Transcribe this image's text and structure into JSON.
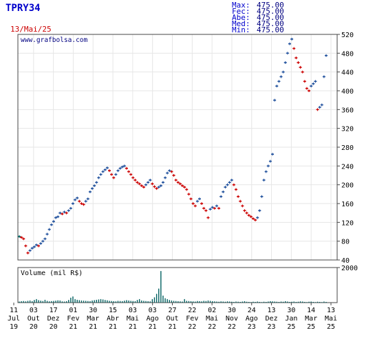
{
  "header": {
    "ticker": "TPRY34",
    "date": "13/Mai/25",
    "stats": [
      {
        "label": "Max:",
        "value": "475.00"
      },
      {
        "label": "Fec:",
        "value": "475.00"
      },
      {
        "label": "Abe:",
        "value": "475.00"
      },
      {
        "label": "Med:",
        "value": "475.00"
      },
      {
        "label": "Min:",
        "value": "475.00"
      }
    ]
  },
  "colors": {
    "ticker": "#0000cc",
    "date": "#cc0000",
    "stat_label": "#0000cc",
    "stat_value": "#000080",
    "watermark": "#000080",
    "up": "#1e4f9c",
    "down": "#cc0000",
    "neutral": "#006060",
    "volume": "#006060",
    "grid": "#e6e6e6",
    "frame": "#444444"
  },
  "chart_data": [
    {
      "type": "line",
      "watermark": "www.grafbolsa.com",
      "ylim": [
        40,
        520
      ],
      "ytick_labels": [
        "40",
        "80",
        "120",
        "160",
        "200",
        "240",
        "280",
        "320",
        "360",
        "400",
        "440",
        "480",
        "520"
      ],
      "xtick_labels": [
        {
          "day": "11",
          "month": "Jul",
          "year": "19"
        },
        {
          "day": "03",
          "month": "Out",
          "year": "20"
        },
        {
          "day": "17",
          "month": "Dez",
          "year": "20"
        },
        {
          "day": "01",
          "month": "Fev",
          "year": "21"
        },
        {
          "day": "30",
          "month": "Mar",
          "year": "21"
        },
        {
          "day": "15",
          "month": "Abr",
          "year": "21"
        },
        {
          "day": "03",
          "month": "Mai",
          "year": "21"
        },
        {
          "day": "03",
          "month": "Ago",
          "year": "21"
        },
        {
          "day": "27",
          "month": "Out",
          "year": "21"
        },
        {
          "day": "22",
          "month": "Fev",
          "year": "22"
        },
        {
          "day": "02",
          "month": "Mai",
          "year": "22"
        },
        {
          "day": "30",
          "month": "Nov",
          "year": "22"
        },
        {
          "day": "24",
          "month": "Ago",
          "year": "23"
        },
        {
          "day": "13",
          "month": "Dez",
          "year": "23"
        },
        {
          "day": "30",
          "month": "Jan",
          "year": "25"
        },
        {
          "day": "14",
          "month": "Mar",
          "year": "25"
        },
        {
          "day": "13",
          "month": "Mai",
          "year": "25"
        }
      ],
      "series": [
        {
          "values": [
            90,
            88,
            85,
            70,
            55,
            60,
            65,
            68,
            72,
            70,
            75,
            80,
            85,
            95,
            105,
            115,
            122,
            130,
            132,
            140,
            138,
            142,
            140,
            145,
            150,
            160,
            168,
            172,
            165,
            160,
            158,
            165,
            170,
            185,
            192,
            198,
            205,
            215,
            222,
            228,
            232,
            236,
            230,
            222,
            215,
            222,
            230,
            235,
            238,
            240,
            235,
            228,
            222,
            215,
            210,
            205,
            202,
            198,
            195,
            200,
            205,
            210,
            202,
            196,
            192,
            195,
            198,
            205,
            215,
            225,
            230,
            228,
            220,
            210,
            205,
            202,
            198,
            195,
            190,
            180,
            170,
            160,
            155,
            165,
            170,
            160,
            150,
            145,
            130,
            148,
            152,
            150,
            155,
            150,
            175,
            185,
            195,
            200,
            205,
            210,
            200,
            190,
            175,
            165,
            155,
            145,
            140,
            135,
            132,
            128,
            125,
            130,
            145,
            175,
            210,
            228,
            240,
            250,
            265,
            380,
            410,
            420,
            430,
            440,
            460,
            480,
            500,
            510,
            490,
            470,
            460,
            450,
            440,
            420,
            405,
            400,
            410,
            415,
            420,
            360,
            365,
            370,
            430,
            475
          ]
        }
      ]
    },
    {
      "type": "bar",
      "title": "Volume (mil R$)",
      "ylim": [
        0,
        2000
      ],
      "ytick_labels": [
        "2000"
      ],
      "values": [
        60,
        80,
        90,
        70,
        100,
        120,
        80,
        150,
        200,
        140,
        110,
        90,
        160,
        100,
        70,
        85,
        95,
        110,
        130,
        120,
        70,
        60,
        80,
        150,
        280,
        350,
        200,
        160,
        140,
        120,
        110,
        100,
        90,
        80,
        120,
        140,
        160,
        180,
        200,
        180,
        150,
        130,
        100,
        90,
        80,
        70,
        100,
        90,
        80,
        110,
        140,
        120,
        100,
        90,
        80,
        150,
        200,
        120,
        100,
        90,
        80,
        70,
        200,
        300,
        500,
        800,
        1800,
        400,
        250,
        200,
        150,
        120,
        100,
        90,
        80,
        70,
        60,
        200,
        100,
        90,
        80,
        70,
        60,
        90,
        80,
        70,
        100,
        90,
        120,
        100,
        80,
        70,
        60,
        50,
        70,
        60,
        50,
        70,
        60,
        50,
        40,
        60,
        50,
        40,
        60,
        80,
        50,
        40,
        30,
        50,
        40,
        60,
        40,
        30,
        50,
        40,
        60,
        80,
        70,
        60,
        50,
        40,
        60,
        50,
        80,
        60,
        40,
        50,
        60,
        40,
        50,
        70,
        60,
        40,
        30,
        50,
        60,
        40,
        30,
        50,
        40,
        30,
        60,
        40
      ]
    }
  ]
}
